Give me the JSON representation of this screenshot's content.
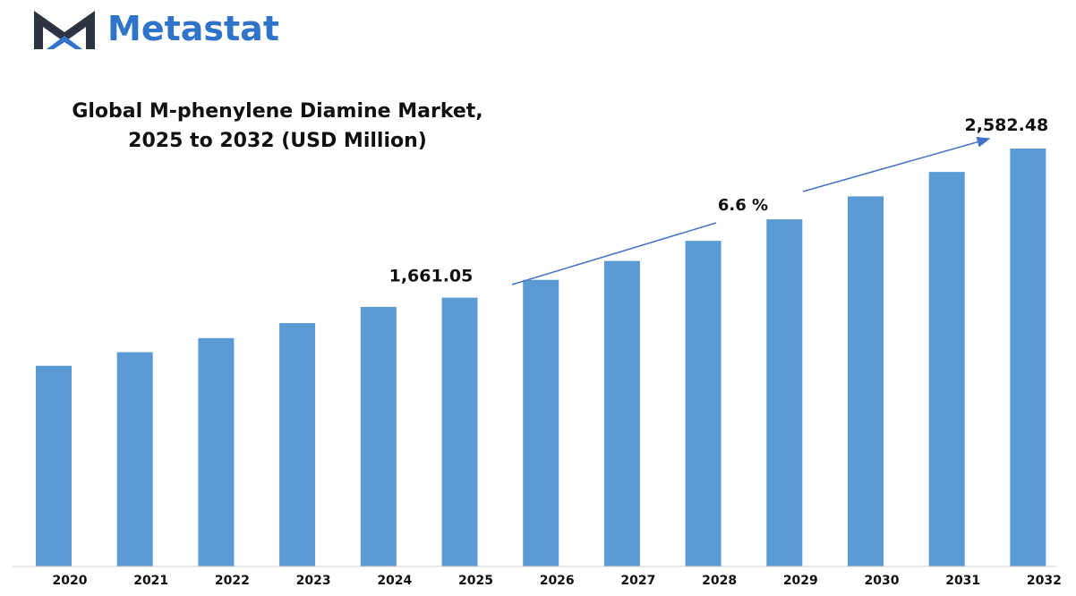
{
  "brand": {
    "name": "Metastat",
    "logo_icon": "metastat-m-logo-icon",
    "color": "#2f74c8",
    "dark": "#2b3440"
  },
  "chart_data": {
    "type": "bar",
    "title": "Global M-phenylene Diamine Market,",
    "subtitle": "2025 to 2032 (USD Million)",
    "categories": [
      "2020",
      "2021",
      "2022",
      "2023",
      "2024",
      "2025",
      "2026",
      "2027",
      "2028",
      "2029",
      "2030",
      "2031",
      "2032"
    ],
    "values": [
      1240,
      1324,
      1411,
      1504,
      1604,
      1661.05,
      1771,
      1888,
      2012,
      2145,
      2287,
      2438,
      2582.48
    ],
    "ylim": [
      0,
      2582.48
    ],
    "xlabel": "",
    "ylabel": "",
    "grid": false,
    "bar_color": "#5b9bd5",
    "data_labels": [
      {
        "category": "2025",
        "text": "1,661.05"
      },
      {
        "category": "2032",
        "text": "2,582.48"
      }
    ],
    "cagr_annotation": {
      "text": "6.6 %",
      "from": "2025",
      "to": "2032",
      "arrow_color": "#4472c4"
    }
  }
}
